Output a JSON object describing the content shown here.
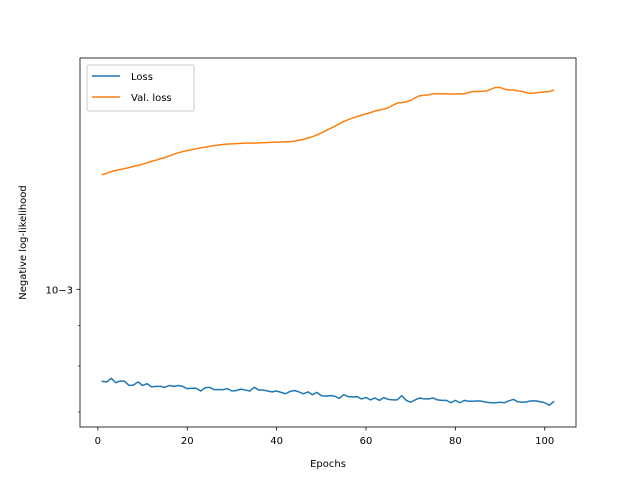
{
  "chart_data": {
    "type": "line",
    "title": "",
    "xlabel": "Epochs",
    "ylabel": "Negative log-likelihood",
    "yscale": "log",
    "xlim": [
      -4,
      107
    ],
    "ylim": [
      0.00067,
      0.00196
    ],
    "xticks": [
      0,
      20,
      40,
      60,
      80,
      100
    ],
    "xtick_labels": [
      "0",
      "20",
      "40",
      "60",
      "80",
      "100"
    ],
    "yticks": [
      0.001
    ],
    "ytick_labels": [
      "10−3"
    ],
    "grid": false,
    "legend_position": "top-left",
    "series": [
      {
        "name": "Loss",
        "color": "#1f77b4",
        "x": [
          1,
          2,
          3,
          4,
          5,
          6,
          7,
          8,
          9,
          10,
          11,
          12,
          13,
          14,
          15,
          16,
          17,
          18,
          19,
          20,
          21,
          22,
          23,
          24,
          25,
          26,
          27,
          28,
          29,
          30,
          31,
          32,
          33,
          34,
          35,
          36,
          37,
          38,
          39,
          40,
          41,
          42,
          43,
          44,
          45,
          46,
          47,
          48,
          49,
          50,
          51,
          52,
          53,
          54,
          55,
          56,
          57,
          58,
          59,
          60,
          61,
          62,
          63,
          64,
          65,
          66,
          67,
          68,
          69,
          70,
          71,
          72,
          73,
          74,
          75,
          76,
          77,
          78,
          79,
          80,
          81,
          82,
          83,
          84,
          85,
          86,
          87,
          88,
          89,
          90,
          91,
          92,
          93,
          94,
          95,
          96,
          97,
          98,
          99,
          100,
          101,
          102
        ],
        "y": [
          0.000765,
          0.000764,
          0.000772,
          0.000762,
          0.000766,
          0.000765,
          0.000756,
          0.000757,
          0.000764,
          0.000756,
          0.00076,
          0.000753,
          0.000754,
          0.000754,
          0.000752,
          0.000756,
          0.000754,
          0.000756,
          0.000754,
          0.000749,
          0.00075,
          0.00075,
          0.000744,
          0.000751,
          0.000752,
          0.000747,
          0.000747,
          0.000747,
          0.000749,
          0.000744,
          0.000745,
          0.000748,
          0.000746,
          0.000744,
          0.000752,
          0.000746,
          0.000746,
          0.000744,
          0.000742,
          0.000744,
          0.000741,
          0.000738,
          0.000743,
          0.000745,
          0.000742,
          0.000738,
          0.000742,
          0.000736,
          0.000741,
          0.000734,
          0.000733,
          0.000734,
          0.000733,
          0.000728,
          0.000736,
          0.000732,
          0.000731,
          0.000732,
          0.000727,
          0.00073,
          0.000725,
          0.000729,
          0.000724,
          0.00073,
          0.000726,
          0.000725,
          0.000725,
          0.000734,
          0.000724,
          0.00072,
          0.000725,
          0.000729,
          0.000727,
          0.000727,
          0.000729,
          0.000725,
          0.000724,
          0.000724,
          0.000719,
          0.000724,
          0.000719,
          0.000724,
          0.000722,
          0.000722,
          0.000723,
          0.000722,
          0.00072,
          0.000719,
          0.000719,
          0.00072,
          0.000719,
          0.000723,
          0.000726,
          0.000721,
          0.00072,
          0.000721,
          0.000723,
          0.000723,
          0.000721,
          0.000719,
          0.000714,
          0.000721
        ]
      },
      {
        "name": "Val. loss",
        "color": "#ff7f0e",
        "x": [
          1,
          2,
          3,
          4,
          5,
          6,
          7,
          8,
          9,
          10,
          11,
          12,
          13,
          14,
          15,
          16,
          17,
          18,
          19,
          20,
          21,
          22,
          23,
          24,
          25,
          26,
          27,
          28,
          29,
          30,
          31,
          32,
          33,
          34,
          35,
          36,
          37,
          38,
          39,
          40,
          41,
          42,
          43,
          44,
          45,
          46,
          47,
          48,
          49,
          50,
          51,
          52,
          53,
          54,
          55,
          56,
          57,
          58,
          59,
          60,
          61,
          62,
          63,
          64,
          65,
          66,
          67,
          68,
          69,
          70,
          71,
          72,
          73,
          74,
          75,
          76,
          77,
          78,
          79,
          80,
          81,
          82,
          83,
          84,
          85,
          86,
          87,
          88,
          89,
          90,
          91,
          92,
          93,
          94,
          95,
          96,
          97,
          98,
          99,
          100,
          101,
          102
        ],
        "y": [
          0.001396,
          0.001402,
          0.001409,
          0.001413,
          0.001417,
          0.001421,
          0.001425,
          0.00143,
          0.001434,
          0.001439,
          0.001445,
          0.001451,
          0.001456,
          0.001462,
          0.001467,
          0.001474,
          0.001481,
          0.001488,
          0.001493,
          0.001497,
          0.001501,
          0.001505,
          0.001509,
          0.001512,
          0.001516,
          0.001519,
          0.001521,
          0.001524,
          0.001526,
          0.001527,
          0.001528,
          0.001529,
          0.00153,
          0.00153,
          0.00153,
          0.001531,
          0.001532,
          0.001533,
          0.001534,
          0.001534,
          0.001535,
          0.001536,
          0.001537,
          0.001539,
          0.001543,
          0.001547,
          0.001553,
          0.001559,
          0.001567,
          0.001576,
          0.001586,
          0.001597,
          0.001607,
          0.001618,
          0.001629,
          0.001638,
          0.001646,
          0.001653,
          0.00166,
          0.001666,
          0.001672,
          0.00168,
          0.001685,
          0.001689,
          0.001696,
          0.001708,
          0.001719,
          0.001722,
          0.001725,
          0.001732,
          0.001746,
          0.001756,
          0.001758,
          0.001761,
          0.001766,
          0.001767,
          0.001766,
          0.001766,
          0.001765,
          0.001765,
          0.001766,
          0.001766,
          0.001773,
          0.001778,
          0.001778,
          0.001779,
          0.001781,
          0.00179,
          0.001799,
          0.001799,
          0.00179,
          0.001786,
          0.001786,
          0.001781,
          0.001778,
          0.001771,
          0.001768,
          0.001771,
          0.001774,
          0.001776,
          0.001778,
          0.001785
        ]
      }
    ]
  }
}
